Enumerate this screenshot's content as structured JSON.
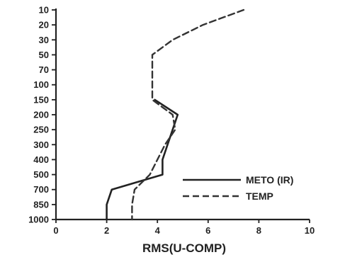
{
  "chart_data": {
    "type": "line",
    "xlabel": "RMS(U-COMP)",
    "xlim": [
      0,
      10
    ],
    "x_ticks": [
      "0",
      "2",
      "4",
      "6",
      "8",
      "10"
    ],
    "y_ticks": [
      "10",
      "20",
      "30",
      "50",
      "70",
      "100",
      "150",
      "200",
      "250",
      "300",
      "400",
      "500",
      "700",
      "850",
      "1000"
    ],
    "y_axis": "pressure levels, top to bottom",
    "grid": false,
    "legend_position": "bottom-right",
    "series": [
      {
        "name": "METO (IR)",
        "style": "solid",
        "color": "#222222",
        "points": [
          {
            "y": "150",
            "x": 3.9
          },
          {
            "y": "200",
            "x": 4.8
          },
          {
            "y": "250",
            "x": 4.6
          },
          {
            "y": "300",
            "x": 4.4
          },
          {
            "y": "400",
            "x": 4.2
          },
          {
            "y": "500",
            "x": 4.2
          },
          {
            "y": "700",
            "x": 2.2
          },
          {
            "y": "850",
            "x": 2.0
          },
          {
            "y": "1000",
            "x": 2.0
          }
        ]
      },
      {
        "name": "TEMP",
        "style": "dashed",
        "color": "#333333",
        "points": [
          {
            "y": "10",
            "x": 7.4
          },
          {
            "y": "20",
            "x": 5.8
          },
          {
            "y": "30",
            "x": 4.6
          },
          {
            "y": "50",
            "x": 3.8
          },
          {
            "y": "70",
            "x": 3.8
          },
          {
            "y": "100",
            "x": 3.8
          },
          {
            "y": "150",
            "x": 3.8
          },
          {
            "y": "200",
            "x": 4.6
          },
          {
            "y": "250",
            "x": 4.7
          },
          {
            "y": "300",
            "x": 4.3
          },
          {
            "y": "400",
            "x": 4.0
          },
          {
            "y": "500",
            "x": 3.7
          },
          {
            "y": "700",
            "x": 3.1
          },
          {
            "y": "850",
            "x": 3.0
          },
          {
            "y": "1000",
            "x": 3.0
          }
        ]
      }
    ]
  }
}
